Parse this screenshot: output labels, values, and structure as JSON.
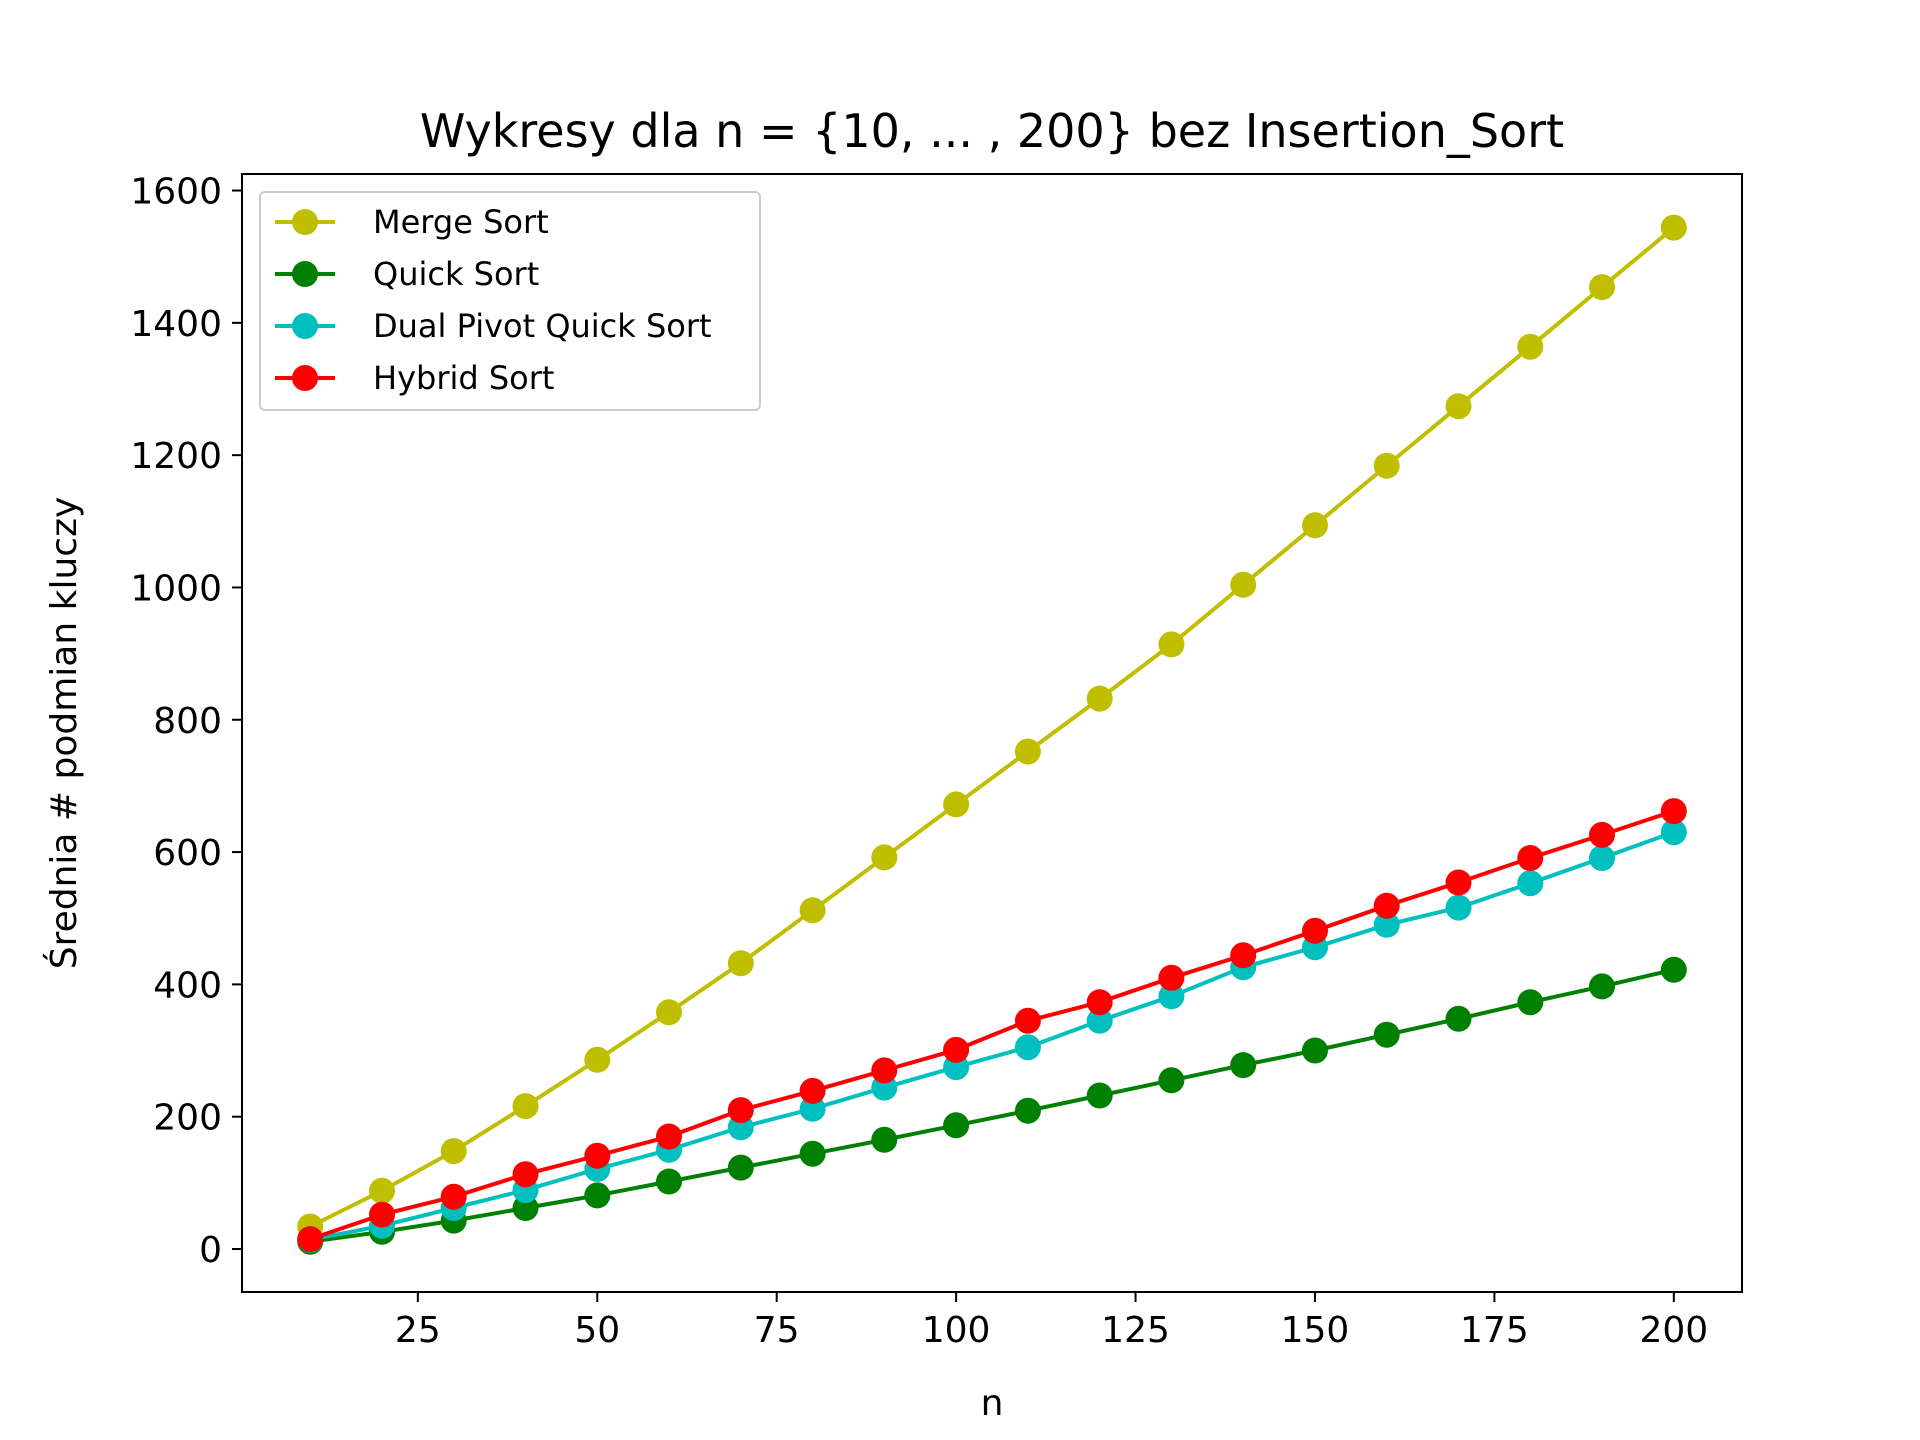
{
  "chart_data": {
    "type": "line",
    "title": "Wykresy dla n = {10, ... , 200} bez Insertion_Sort",
    "xlabel": "n",
    "ylabel": "Średnia # podmian kluczy",
    "xlim": [
      0.5,
      209.5
    ],
    "ylim": [
      -65,
      1625
    ],
    "xticks": [
      25,
      50,
      75,
      100,
      125,
      150,
      175,
      200
    ],
    "yticks": [
      0,
      200,
      400,
      600,
      800,
      1000,
      1200,
      1400,
      1600
    ],
    "grid": false,
    "legend_position": "upper-left",
    "x": [
      10,
      20,
      30,
      40,
      50,
      60,
      70,
      80,
      90,
      100,
      110,
      120,
      130,
      140,
      150,
      160,
      170,
      180,
      190,
      200
    ],
    "series": [
      {
        "name": "Merge Sort",
        "color": "#bfbf00",
        "values": [
          34,
          88,
          148,
          216,
          286,
          358,
          432,
          512,
          592,
          672,
          752,
          832,
          914,
          1004,
          1094,
          1184,
          1274,
          1364,
          1454,
          1544
        ]
      },
      {
        "name": "Quick Sort",
        "color": "#008000",
        "values": [
          11,
          26,
          43,
          62,
          81,
          102,
          123,
          144,
          165,
          187,
          209,
          232,
          255,
          278,
          300,
          324,
          348,
          373,
          397,
          422
        ]
      },
      {
        "name": "Dual Pivot Quick Sort",
        "color": "#00bfbf",
        "values": [
          14,
          35,
          62,
          89,
          121,
          150,
          184,
          212,
          244,
          275,
          305,
          345,
          382,
          426,
          456,
          490,
          516,
          553,
          591,
          630
        ]
      },
      {
        "name": "Hybrid Sort",
        "color": "#ff0000",
        "values": [
          15,
          52,
          79,
          113,
          141,
          170,
          210,
          239,
          270,
          301,
          345,
          373,
          410,
          444,
          481,
          519,
          554,
          591,
          626,
          662
        ]
      }
    ]
  }
}
